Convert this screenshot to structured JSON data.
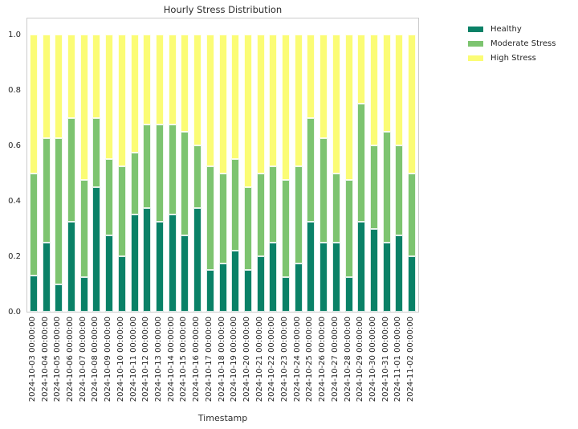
{
  "chart_data": {
    "type": "bar",
    "stacked": true,
    "title": "Hourly Stress Distribution",
    "xlabel": "Timestamp",
    "ylabel": "",
    "ylim": [
      0,
      1.064
    ],
    "grid": false,
    "legend_position": "outside-upper-right",
    "yticks": [
      0,
      0.2,
      0.4,
      0.6,
      0.8,
      1.0
    ],
    "ytick_labels": [
      "0.0",
      "0.2",
      "0.4",
      "0.6",
      "0.8",
      "1.0"
    ],
    "categories": [
      "2024-10-03 00:00:00",
      "2024-10-04 00:00:00",
      "2024-10-05 00:00:00",
      "2024-10-06 00:00:00",
      "2024-10-07 00:00:00",
      "2024-10-08 00:00:00",
      "2024-10-09 00:00:00",
      "2024-10-10 00:00:00",
      "2024-10-11 00:00:00",
      "2024-10-12 00:00:00",
      "2024-10-13 00:00:00",
      "2024-10-14 00:00:00",
      "2024-10-15 00:00:00",
      "2024-10-16 00:00:00",
      "2024-10-17 00:00:00",
      "2024-10-18 00:00:00",
      "2024-10-19 00:00:00",
      "2024-10-20 00:00:00",
      "2024-10-21 00:00:00",
      "2024-10-22 00:00:00",
      "2024-10-23 00:00:00",
      "2024-10-24 00:00:00",
      "2024-10-25 00:00:00",
      "2024-10-26 00:00:00",
      "2024-10-27 00:00:00",
      "2024-10-28 00:00:00",
      "2024-10-29 00:00:00",
      "2024-10-30 00:00:00",
      "2024-10-31 00:00:00",
      "2024-11-01 00:00:00",
      "2024-11-02 00:00:00"
    ],
    "series": [
      {
        "name": "Healthy",
        "color": "#0a8167",
        "values": [
          0.13,
          0.25,
          0.1,
          0.325,
          0.125,
          0.45,
          0.275,
          0.2,
          0.35,
          0.375,
          0.325,
          0.35,
          0.275,
          0.375,
          0.15,
          0.175,
          0.22,
          0.15,
          0.2,
          0.25,
          0.125,
          0.175,
          0.325,
          0.25,
          0.25,
          0.125,
          0.325,
          0.3,
          0.25,
          0.275,
          0.2
        ]
      },
      {
        "name": "Moderate Stress",
        "color": "#7dc470",
        "values": [
          0.37,
          0.375,
          0.525,
          0.375,
          0.35,
          0.25,
          0.275,
          0.325,
          0.225,
          0.3,
          0.35,
          0.325,
          0.375,
          0.225,
          0.375,
          0.325,
          0.33,
          0.3,
          0.3,
          0.275,
          0.35,
          0.35,
          0.375,
          0.375,
          0.25,
          0.35,
          0.425,
          0.3,
          0.4,
          0.325,
          0.3
        ]
      },
      {
        "name": "High Stress",
        "color": "#fbfc75",
        "values": [
          0.5,
          0.375,
          0.375,
          0.3,
          0.525,
          0.3,
          0.45,
          0.475,
          0.425,
          0.325,
          0.325,
          0.325,
          0.35,
          0.4,
          0.475,
          0.5,
          0.45,
          0.55,
          0.5,
          0.475,
          0.525,
          0.475,
          0.3,
          0.375,
          0.5,
          0.525,
          0.25,
          0.4,
          0.35,
          0.4,
          0.5
        ]
      }
    ]
  }
}
